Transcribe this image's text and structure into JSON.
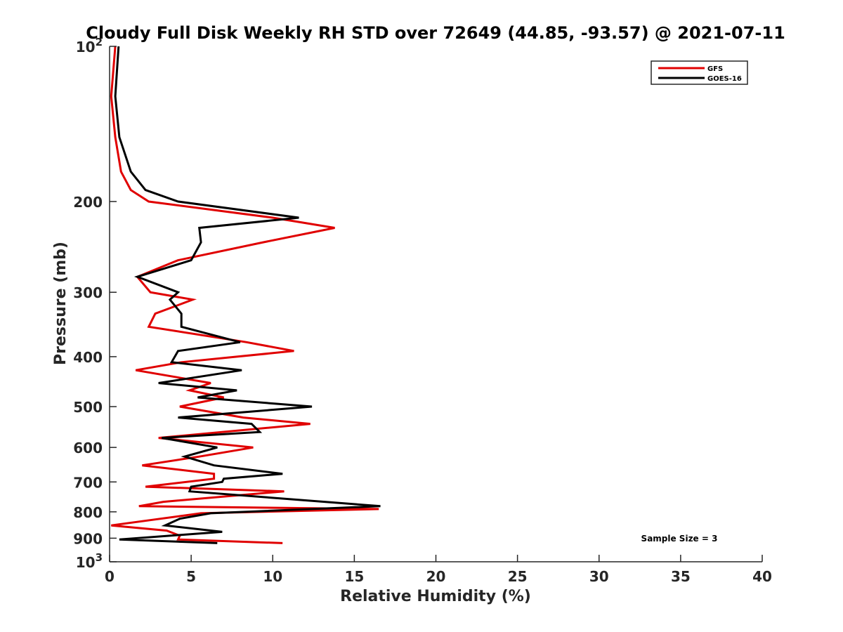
{
  "chart_data": {
    "type": "line",
    "title": "Cloudy Full Disk Weekly RH STD over 72649 (44.85, -93.57) @ 2021-07-11",
    "xlabel": "Relative Humidity (%)",
    "ylabel": "Pressure (mb)",
    "xlim": [
      0,
      40
    ],
    "ylim": [
      100,
      1000
    ],
    "y_scale": "log",
    "y_reversed": true,
    "x_ticks": [
      "0",
      "5",
      "10",
      "15",
      "20",
      "25",
      "30",
      "35",
      "40"
    ],
    "y_ticks": [
      {
        "value": 100,
        "base": "10",
        "exp": "2"
      },
      {
        "value": 200,
        "label": "200"
      },
      {
        "value": 300,
        "label": "300"
      },
      {
        "value": 400,
        "label": "400"
      },
      {
        "value": 500,
        "label": "500"
      },
      {
        "value": 600,
        "label": "600"
      },
      {
        "value": 700,
        "label": "700"
      },
      {
        "value": 800,
        "label": "800"
      },
      {
        "value": 900,
        "label": "900"
      },
      {
        "value": 1000,
        "base": "10",
        "exp": "3"
      }
    ],
    "grid": false,
    "legend_position": "top-right",
    "annotation": "Sample Size = 3",
    "series": [
      {
        "name": "GFS",
        "color": "#e00000",
        "points": [
          [
            0.35,
            100
          ],
          [
            0.1,
            125
          ],
          [
            0.35,
            150
          ],
          [
            0.7,
            175
          ],
          [
            1.3,
            190
          ],
          [
            2.4,
            200
          ],
          [
            10.0,
            215
          ],
          [
            13.8,
            225
          ],
          [
            9.4,
            240
          ],
          [
            4.2,
            260
          ],
          [
            1.7,
            280
          ],
          [
            2.5,
            300
          ],
          [
            5.1,
            310
          ],
          [
            2.8,
            330
          ],
          [
            2.4,
            350
          ],
          [
            8.4,
            375
          ],
          [
            11.3,
            390
          ],
          [
            4.4,
            410
          ],
          [
            1.6,
            425
          ],
          [
            6.2,
            450
          ],
          [
            4.9,
            465
          ],
          [
            7.0,
            480
          ],
          [
            4.3,
            500
          ],
          [
            8.2,
            525
          ],
          [
            12.3,
            540
          ],
          [
            3.0,
            575
          ],
          [
            8.8,
            600
          ],
          [
            5.5,
            625
          ],
          [
            2.0,
            650
          ],
          [
            6.4,
            675
          ],
          [
            6.4,
            690
          ],
          [
            2.2,
            715
          ],
          [
            10.7,
            730
          ],
          [
            3.3,
            765
          ],
          [
            1.8,
            780
          ],
          [
            16.5,
            790
          ],
          [
            5.6,
            805
          ],
          [
            0.1,
            850
          ],
          [
            3.5,
            870
          ],
          [
            4.3,
            890
          ],
          [
            4.2,
            905
          ],
          [
            10.6,
            920
          ]
        ]
      },
      {
        "name": "GOES-16",
        "color": "#000000",
        "points": [
          [
            0.55,
            100
          ],
          [
            0.35,
            125
          ],
          [
            0.6,
            150
          ],
          [
            1.3,
            175
          ],
          [
            2.2,
            190
          ],
          [
            4.2,
            200
          ],
          [
            11.6,
            215
          ],
          [
            5.5,
            225
          ],
          [
            5.6,
            240
          ],
          [
            5.0,
            260
          ],
          [
            1.7,
            280
          ],
          [
            4.2,
            300
          ],
          [
            3.7,
            310
          ],
          [
            4.4,
            330
          ],
          [
            4.4,
            350
          ],
          [
            8.0,
            375
          ],
          [
            4.2,
            390
          ],
          [
            3.8,
            410
          ],
          [
            8.1,
            425
          ],
          [
            3.0,
            450
          ],
          [
            7.8,
            465
          ],
          [
            5.4,
            480
          ],
          [
            12.4,
            500
          ],
          [
            4.2,
            525
          ],
          [
            8.7,
            540
          ],
          [
            9.2,
            560
          ],
          [
            3.2,
            575
          ],
          [
            6.6,
            600
          ],
          [
            4.6,
            625
          ],
          [
            6.4,
            650
          ],
          [
            10.6,
            675
          ],
          [
            7.0,
            690
          ],
          [
            6.9,
            700
          ],
          [
            5.0,
            715
          ],
          [
            4.9,
            730
          ],
          [
            16.6,
            780
          ],
          [
            6.2,
            805
          ],
          [
            4.3,
            825
          ],
          [
            3.4,
            850
          ],
          [
            6.9,
            875
          ],
          [
            0.6,
            905
          ],
          [
            6.6,
            920
          ]
        ]
      }
    ]
  }
}
